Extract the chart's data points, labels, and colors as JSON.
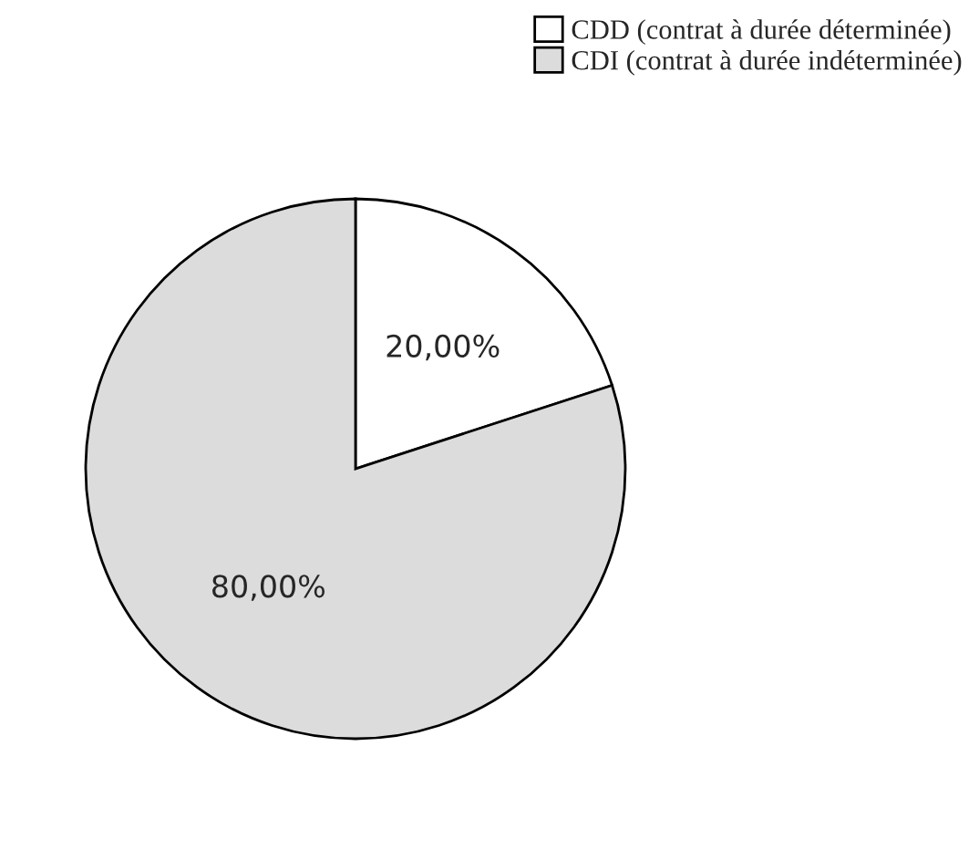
{
  "chart_data": {
    "type": "pie",
    "categories": [
      "CDD (contrat à durée déterminée)",
      "CDI (contrat à durée indéterminée)"
    ],
    "values": [
      20,
      80
    ],
    "colors": [
      "#ffffff",
      "#dcdcdc"
    ],
    "value_labels": [
      "20,00%",
      "80,00%"
    ],
    "legend": "top right"
  }
}
